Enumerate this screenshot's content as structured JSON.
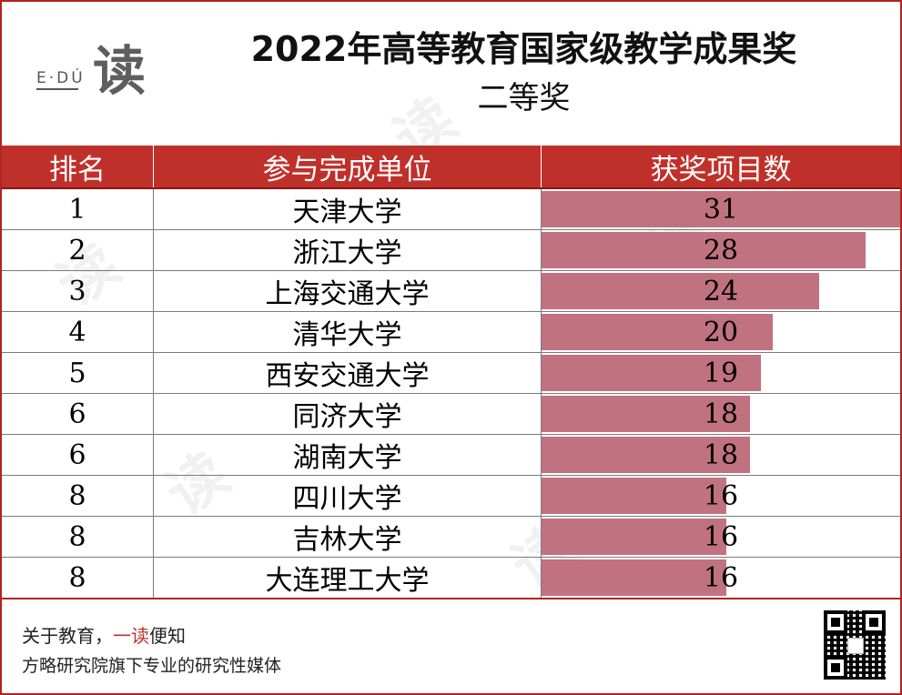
{
  "header": {
    "logo_text": "E·DÚ",
    "logo_mark": "读",
    "title": "2022年高等教育国家级教学成果奖",
    "subtitle": "二等奖"
  },
  "table": {
    "columns": [
      "排名",
      "参与完成单位",
      "获奖项目数"
    ],
    "rows": [
      {
        "rank": "1",
        "unit": "天津大学",
        "count": "31"
      },
      {
        "rank": "2",
        "unit": "浙江大学",
        "count": "28"
      },
      {
        "rank": "3",
        "unit": "上海交通大学",
        "count": "24"
      },
      {
        "rank": "4",
        "unit": "清华大学",
        "count": "20"
      },
      {
        "rank": "5",
        "unit": "西安交通大学",
        "count": "19"
      },
      {
        "rank": "6",
        "unit": "同济大学",
        "count": "18"
      },
      {
        "rank": "6",
        "unit": "湖南大学",
        "count": "18"
      },
      {
        "rank": "8",
        "unit": "四川大学",
        "count": "16"
      },
      {
        "rank": "8",
        "unit": "吉林大学",
        "count": "16"
      },
      {
        "rank": "8",
        "unit": "大连理工大学",
        "count": "16"
      }
    ],
    "bar_max": 31,
    "bar_color": "#c07280",
    "header_color": "#c0302a"
  },
  "footer": {
    "slogan_prefix": "关于教育，",
    "slogan_highlight": "一读",
    "slogan_suffix": "便知",
    "description": "方略研究院旗下专业的研究性媒体",
    "qr_icon": "qr-code-icon"
  },
  "colors": {
    "border": "#b3231f",
    "accent": "#c0302a"
  }
}
